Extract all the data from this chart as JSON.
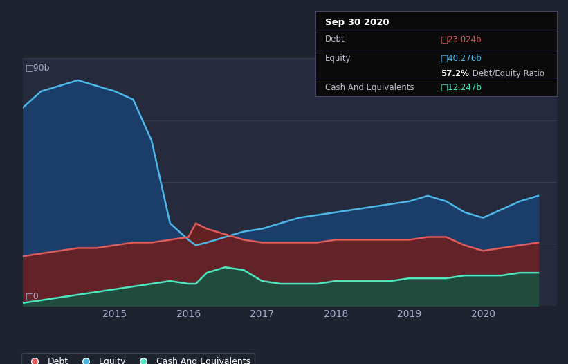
{
  "bg_color": "#1e2330",
  "plot_bg_color": "#252a3d",
  "grid_color": "#3a3f55",
  "tooltip": {
    "title": "Sep 30 2020",
    "debt_label": "Debt",
    "debt_value": "23.024b",
    "equity_label": "Equity",
    "equity_value": "40.276b",
    "ratio_bold": "57.2%",
    "ratio_rest": " Debt/Equity Ratio",
    "cash_label": "Cash And Equivalents",
    "cash_value": "12.247b"
  },
  "ylabel_top": "□90b",
  "ylabel_bottom": "□0",
  "debt_color": "#e05c5c",
  "equity_color": "#4db8e8",
  "cash_color": "#4de8c0",
  "debt_fill": "#6b2020",
  "equity_fill": "#1a4070",
  "cash_fill": "#1a5040",
  "legend_border": "#3a3f55",
  "years": [
    2013.75,
    2014.0,
    2014.25,
    2014.5,
    2014.75,
    2015.0,
    2015.25,
    2015.5,
    2015.75,
    2016.0,
    2016.1,
    2016.25,
    2016.5,
    2016.75,
    2017.0,
    2017.25,
    2017.5,
    2017.75,
    2018.0,
    2018.25,
    2018.5,
    2018.75,
    2019.0,
    2019.25,
    2019.5,
    2019.75,
    2020.0,
    2020.25,
    2020.5,
    2020.75
  ],
  "equity": [
    72,
    78,
    80,
    82,
    80,
    78,
    75,
    60,
    30,
    24,
    22,
    23,
    25,
    27,
    28,
    30,
    32,
    33,
    34,
    35,
    36,
    37,
    38,
    40,
    38,
    34,
    32,
    35,
    38,
    40
  ],
  "debt": [
    18,
    19,
    20,
    21,
    21,
    22,
    23,
    23,
    24,
    25,
    30,
    28,
    26,
    24,
    23,
    23,
    23,
    23,
    24,
    24,
    24,
    24,
    24,
    25,
    25,
    22,
    20,
    21,
    22,
    23
  ],
  "cash": [
    1,
    2,
    3,
    4,
    5,
    6,
    7,
    8,
    9,
    8,
    8,
    12,
    14,
    13,
    9,
    8,
    8,
    8,
    9,
    9,
    9,
    9,
    10,
    10,
    10,
    11,
    11,
    11,
    12,
    12
  ],
  "xlim": [
    2013.75,
    2021.0
  ],
  "ylim": [
    0,
    90
  ],
  "xticks": [
    2015,
    2016,
    2017,
    2018,
    2019,
    2020
  ],
  "xtick_labels": [
    "2015",
    "2016",
    "2017",
    "2018",
    "2019",
    "2020"
  ],
  "grid_y_vals": [
    0,
    22.5,
    45,
    67.5,
    90
  ]
}
